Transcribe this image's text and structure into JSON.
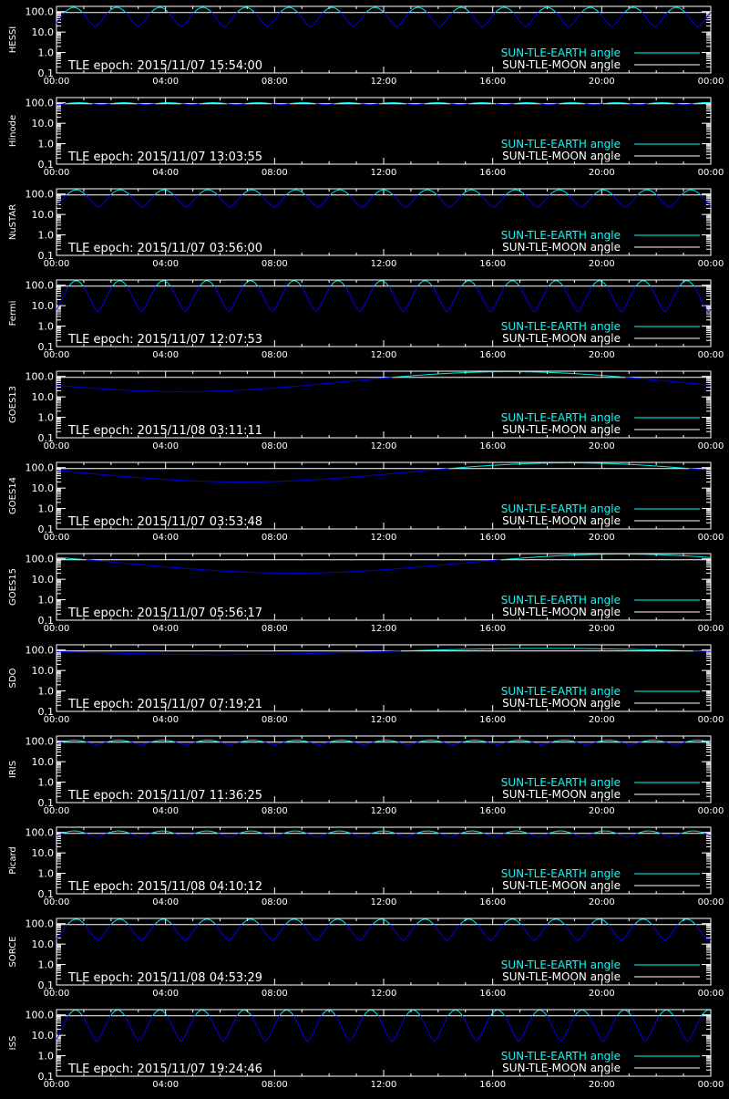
{
  "colors": {
    "background": "#000000",
    "axes": "#ffffff",
    "earth_angle": "#00ffff",
    "earth_angle_eclipse": "#0000ff",
    "moon_angle": "#ffffff"
  },
  "legend": {
    "earth_label": "SUN-TLE-EARTH angle",
    "moon_label": "SUN-TLE-MOON angle"
  },
  "chart_data": {
    "type": "line",
    "yscale": "log",
    "ylim": [
      0.1,
      180
    ],
    "reference_line_y": 90,
    "xlim_hours": [
      0,
      24
    ],
    "x_tick_labels": [
      "00:00",
      "04:00",
      "08:00",
      "12:00",
      "16:00",
      "20:00",
      "00:00"
    ],
    "y_tick_labels": [
      "100.0",
      "10.0",
      "1.0",
      "0.1"
    ],
    "legend_placement": "bottom-right",
    "panels": [
      {
        "satellite": "HESSI",
        "tle_epoch": "TLE epoch: 2015/11/07 15:54:00",
        "series": {
          "SUN-TLE-EARTH angle": {
            "pattern": "orbital",
            "orbits": 15.2,
            "max": 160,
            "min": 18,
            "phase": 0.1
          }
        }
      },
      {
        "satellite": "Hinode",
        "tle_epoch": "TLE epoch: 2015/11/07 13:03:55",
        "series": {
          "SUN-TLE-EARTH angle": {
            "pattern": "orbital",
            "orbits": 14.6,
            "max": 102,
            "min": 80,
            "phase": 0.0
          }
        }
      },
      {
        "satellite": "NuSTAR",
        "tle_epoch": "TLE epoch: 2015/11/07 03:56:00",
        "series": {
          "SUN-TLE-EARTH angle": {
            "pattern": "orbital",
            "orbits": 14.9,
            "max": 160,
            "min": 22,
            "phase": 0.05
          }
        }
      },
      {
        "satellite": "Fermi",
        "tle_epoch": "TLE epoch: 2015/11/07 12:07:53",
        "series": {
          "SUN-TLE-EARTH angle": {
            "pattern": "orbital",
            "orbits": 15.0,
            "max": 165,
            "min": 5,
            "phase": 0.05
          }
        }
      },
      {
        "satellite": "GOES13",
        "tle_epoch": "TLE epoch: 2015/11/08 03:11:11",
        "series": {
          "SUN-TLE-EARTH angle": {
            "pattern": "daily",
            "min": 18,
            "min_hour": 4.6,
            "max": 170,
            "max_hour": 16.6
          }
        }
      },
      {
        "satellite": "GOES14",
        "tle_epoch": "TLE epoch: 2015/11/07 03:53:48",
        "series": {
          "SUN-TLE-EARTH angle": {
            "pattern": "daily",
            "min": 20,
            "min_hour": 6.8,
            "max": 170,
            "max_hour": 18.8
          }
        }
      },
      {
        "satellite": "GOES15",
        "tle_epoch": "TLE epoch: 2015/11/07 05:56:17",
        "series": {
          "SUN-TLE-EARTH angle": {
            "pattern": "daily",
            "min": 20,
            "min_hour": 8.7,
            "max": 170,
            "max_hour": 20.7
          }
        }
      },
      {
        "satellite": "SDO",
        "tle_epoch": "TLE epoch: 2015/11/07 07:19:21",
        "series": {
          "SUN-TLE-EARTH angle": {
            "pattern": "daily",
            "min": 60,
            "min_hour": 6.0,
            "max": 120,
            "max_hour": 18.0
          }
        }
      },
      {
        "satellite": "IRIS",
        "tle_epoch": "TLE epoch: 2015/11/07 11:36:25",
        "series": {
          "SUN-TLE-EARTH angle": {
            "pattern": "orbital",
            "orbits": 14.7,
            "max": 112,
            "min": 68,
            "phase": 0.1
          }
        }
      },
      {
        "satellite": "Picard",
        "tle_epoch": "TLE epoch: 2015/11/08 04:10:12",
        "series": {
          "SUN-TLE-EARTH angle": {
            "pattern": "orbital",
            "orbits": 14.8,
            "max": 118,
            "min": 60,
            "phase": 0.1
          }
        }
      },
      {
        "satellite": "SORCE",
        "tle_epoch": "TLE epoch: 2015/11/08 04:53:29",
        "series": {
          "SUN-TLE-EARTH angle": {
            "pattern": "orbital",
            "orbits": 15.0,
            "max": 165,
            "min": 15,
            "phase": 0.05
          }
        }
      },
      {
        "satellite": "ISS",
        "tle_epoch": "TLE epoch: 2015/11/07 19:24:46",
        "series": {
          "SUN-TLE-EARTH angle": {
            "pattern": "orbital",
            "orbits": 15.5,
            "max": 170,
            "min": 5,
            "phase": 0.05
          }
        }
      }
    ]
  }
}
